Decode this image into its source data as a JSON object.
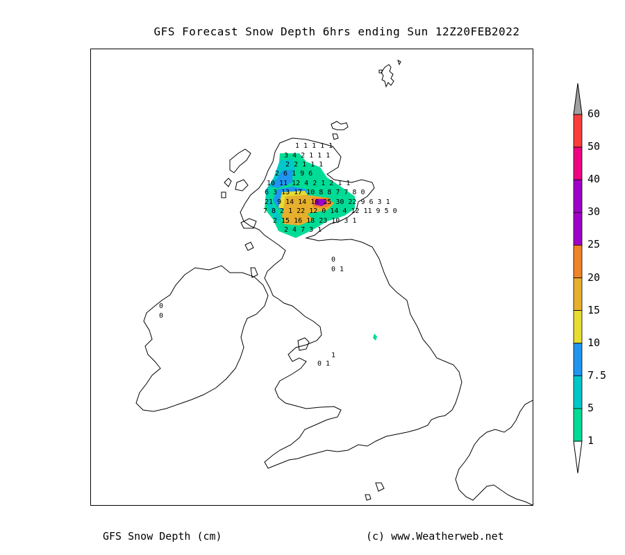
{
  "title": "GFS Forecast Snow Depth 6hrs ending Sun 12Z20FEB2022",
  "footer": {
    "left": "GFS Snow Depth (cm)",
    "right": "(c) www.Weatherweb.net"
  },
  "legend": {
    "levels": [
      {
        "label": "60",
        "color": "#fa3c3c"
      },
      {
        "label": "50",
        "color": "#f00082"
      },
      {
        "label": "40",
        "color": "#a000c8"
      },
      {
        "label": "30",
        "color": "#a000c8"
      },
      {
        "label": "25",
        "color": "#f08228"
      },
      {
        "label": "20",
        "color": "#e6af2d"
      },
      {
        "label": "15",
        "color": "#e6dc32"
      },
      {
        "label": "10",
        "color": "#1e96f0"
      },
      {
        "label": "7.5",
        "color": "#00c8c8"
      },
      {
        "label": "5",
        "color": "#00dc96"
      },
      {
        "label": "1",
        "color": "#00dc96"
      }
    ],
    "overflow_color": "#a0a0a0"
  },
  "grid_values": [
    {
      "text": "1 1 1 1 1",
      "row": 0
    },
    {
      "text": "3 4 2 1 1 1",
      "row": 1
    },
    {
      "text": "2 2 1 1 1",
      "row": 2
    },
    {
      "text": "2 6 1 9 6",
      "row": 3
    },
    {
      "text": "10 11 12 4 2 1 2 1 1",
      "row": 4
    },
    {
      "text": "6 3 13 17 10 8 8 7 7 8 0",
      "row": 5
    },
    {
      "text": "21 9 14 14 16 25 30 22 9 6 3 1",
      "row": 6
    },
    {
      "text": "7 8 2 1 22 12 0 14 4 12 11 9 5 0",
      "row": 7
    },
    {
      "text": "2 15 16 18 23 10 3 1",
      "row": 8
    },
    {
      "text": "2 4 7 3 1",
      "row": 9
    }
  ],
  "isolated_values": [
    "0",
    "0 1",
    "0",
    "0",
    "1",
    "0 1"
  ]
}
